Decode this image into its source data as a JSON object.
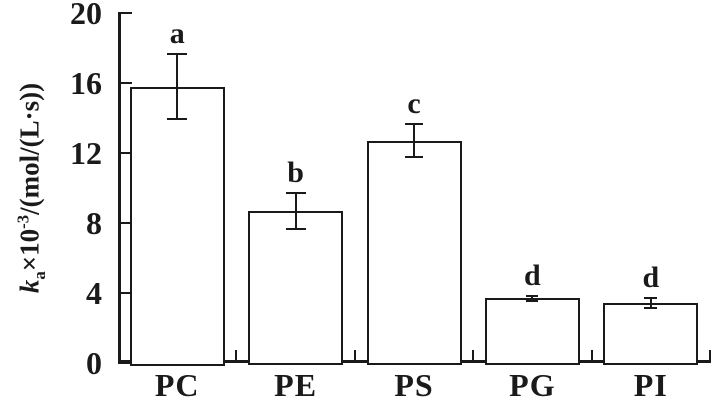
{
  "chart_data": {
    "type": "bar",
    "title": "",
    "categories": [
      "PC",
      "PE",
      "PS",
      "PG",
      "PI"
    ],
    "values": [
      15.8,
      8.7,
      12.7,
      3.7,
      3.45
    ],
    "errors": [
      1.9,
      1.1,
      1.0,
      0.2,
      0.35
    ],
    "sig_letters": [
      "a",
      "b",
      "c",
      "d",
      "d"
    ],
    "ylabel": "k_a×10^-3/(mol/(L·s))",
    "ylabel_parts": {
      "var": "k",
      "var_sub": "a",
      "times": "×10",
      "exp": "-3",
      "unit": "/(mol/(L·s))"
    },
    "xlabel": "",
    "ylim": [
      0,
      20
    ],
    "yticks": [
      "0",
      "4",
      "8",
      "12",
      "16",
      "20"
    ],
    "error_cap_widths": [
      20,
      20,
      18,
      12,
      13
    ],
    "grid": false,
    "legend": null,
    "bar_fill": "#ffffff",
    "line_color": "#1a1a1a",
    "background": "#ffffff"
  }
}
